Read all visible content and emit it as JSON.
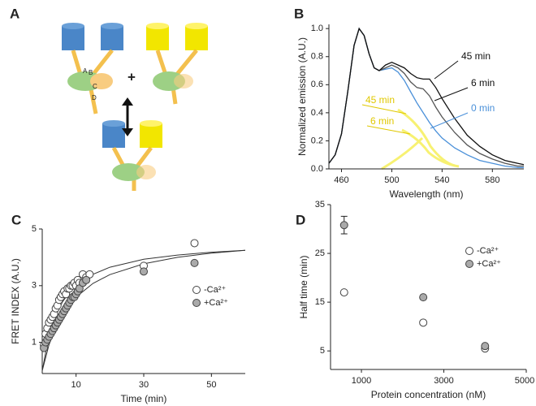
{
  "diagram": {
    "label": "A",
    "plus": "+",
    "domain_labels": [
      "A",
      "B",
      "C",
      "D"
    ]
  },
  "chart_data": [
    {
      "type": "line",
      "panel_label": "B",
      "x_label": "Wavelength (nm)",
      "y_label": "Normalized emission (A.U.)",
      "x": [
        450,
        455,
        460,
        465,
        470,
        474,
        478,
        482,
        486,
        490,
        495,
        500,
        505,
        510,
        515,
        520,
        525,
        530,
        535,
        540,
        550,
        560,
        570,
        580,
        590,
        600,
        605
      ],
      "series": [
        {
          "name": "0 min",
          "color": "#4a90d9",
          "values": [
            0.04,
            0.1,
            0.25,
            0.55,
            0.88,
            1.0,
            0.95,
            0.82,
            0.72,
            0.7,
            0.71,
            0.72,
            0.69,
            0.63,
            0.55,
            0.47,
            0.4,
            0.33,
            0.27,
            0.22,
            0.15,
            0.1,
            0.06,
            0.04,
            0.02,
            0.01,
            0.01
          ]
        },
        {
          "name": "6 min",
          "color": "#555555",
          "values": [
            0.04,
            0.1,
            0.25,
            0.55,
            0.88,
            1.0,
            0.95,
            0.82,
            0.72,
            0.7,
            0.72,
            0.74,
            0.72,
            0.68,
            0.62,
            0.58,
            0.57,
            0.52,
            0.44,
            0.37,
            0.26,
            0.17,
            0.11,
            0.07,
            0.04,
            0.02,
            0.02
          ]
        },
        {
          "name": "45 min",
          "color": "#111111",
          "values": [
            0.04,
            0.1,
            0.25,
            0.55,
            0.88,
            1.0,
            0.95,
            0.82,
            0.72,
            0.7,
            0.74,
            0.76,
            0.74,
            0.72,
            0.68,
            0.65,
            0.64,
            0.64,
            0.58,
            0.5,
            0.36,
            0.24,
            0.16,
            0.1,
            0.06,
            0.04,
            0.03
          ]
        }
      ],
      "annotations": [
        {
          "text": "45 min",
          "color": "#111111"
        },
        {
          "text": "6 min",
          "color": "#111111"
        },
        {
          "text": "0 min",
          "color": "#4a90d9"
        },
        {
          "text": "45 min",
          "color": "#e0c800"
        },
        {
          "text": "6 min",
          "color": "#e0c800"
        }
      ],
      "xlim": [
        450,
        605
      ],
      "xticks": [
        460,
        500,
        540,
        580
      ],
      "ylim": [
        0,
        1.03
      ],
      "yticks": [
        {
          "value": 0,
          "label": "0.0"
        },
        0.2,
        0.4,
        0.6,
        0.8,
        {
          "value": 1,
          "label": "1.0"
        }
      ]
    },
    {
      "type": "scatter",
      "panel_label": "C",
      "x_label": "Time (min)",
      "y_label": "FRET INDEX (A.U.)",
      "series": [
        {
          "name": "-Ca²⁺",
          "color": "#ffffff",
          "x": [
            0.5,
            1,
            1.5,
            2,
            2.5,
            3,
            3.5,
            4,
            4.5,
            5,
            5.5,
            6,
            6.5,
            7,
            7.5,
            8,
            8.5,
            9,
            9.5,
            10,
            10.5,
            11,
            12,
            13,
            14,
            30,
            45
          ],
          "values": [
            0.9,
            1.3,
            1.5,
            1.7,
            1.8,
            1.9,
            2.0,
            2.2,
            2.3,
            2.5,
            2.6,
            2.7,
            2.8,
            2.7,
            2.9,
            2.9,
            3.0,
            3.0,
            3.1,
            3.0,
            3.2,
            3.1,
            3.4,
            3.3,
            3.4,
            3.7,
            4.5
          ]
        },
        {
          "name": "+Ca²⁺",
          "color": "#aaaaaa",
          "x": [
            0.5,
            1,
            1.5,
            2,
            2.5,
            3,
            3.5,
            4,
            4.5,
            5,
            5.5,
            6,
            6.5,
            7,
            7.5,
            8,
            8.5,
            9,
            9.5,
            10,
            10.5,
            11,
            12,
            13,
            30,
            45
          ],
          "values": [
            0.8,
            1.0,
            1.1,
            1.2,
            1.3,
            1.4,
            1.5,
            1.6,
            1.7,
            1.8,
            1.9,
            2.0,
            2.1,
            2.2,
            2.3,
            2.4,
            2.5,
            2.6,
            2.6,
            2.7,
            2.8,
            2.9,
            3.1,
            3.2,
            3.5,
            3.8
          ]
        }
      ],
      "fit_curves": [
        {
          "color": "#333333",
          "x": [
            0,
            2,
            4,
            6,
            8,
            10,
            15,
            20,
            30,
            40,
            50,
            60
          ],
          "values": [
            0,
            1.25,
            1.96,
            2.43,
            2.76,
            3.0,
            3.4,
            3.65,
            3.93,
            4.08,
            4.18,
            4.25
          ]
        },
        {
          "color": "#333333",
          "x": [
            0,
            2,
            4,
            6,
            8,
            10,
            15,
            20,
            30,
            40,
            50,
            60
          ],
          "values": [
            0,
            0.91,
            1.53,
            1.99,
            2.33,
            2.6,
            3.08,
            3.39,
            3.77,
            4.0,
            4.15,
            4.25
          ]
        }
      ],
      "legend": "right",
      "xlim": [
        0,
        60
      ],
      "xticks": [
        10,
        30,
        50
      ],
      "ylim": [
        -0.1,
        5
      ],
      "yticks": [
        1,
        3,
        5
      ]
    },
    {
      "type": "scatter",
      "panel_label": "D",
      "x_label": "Protein concentration (nM)",
      "y_label": "Half time (min)",
      "series": [
        {
          "name": "-Ca²⁺",
          "color": "#ffffff",
          "x": [
            580,
            2500,
            4000
          ],
          "values": [
            17,
            10.8,
            5.5
          ]
        },
        {
          "name": "+Ca²⁺",
          "color": "#aaaaaa",
          "x": [
            580,
            2500,
            4000
          ],
          "values": [
            30.8,
            16,
            6
          ],
          "errors": [
            1.8,
            null,
            null
          ]
        }
      ],
      "legend": "right",
      "xlim": [
        250,
        5000
      ],
      "xticks": [
        1000,
        3000,
        5000
      ],
      "ylim": [
        1.2,
        35
      ],
      "yticks": [
        5,
        15,
        25,
        35
      ]
    }
  ]
}
